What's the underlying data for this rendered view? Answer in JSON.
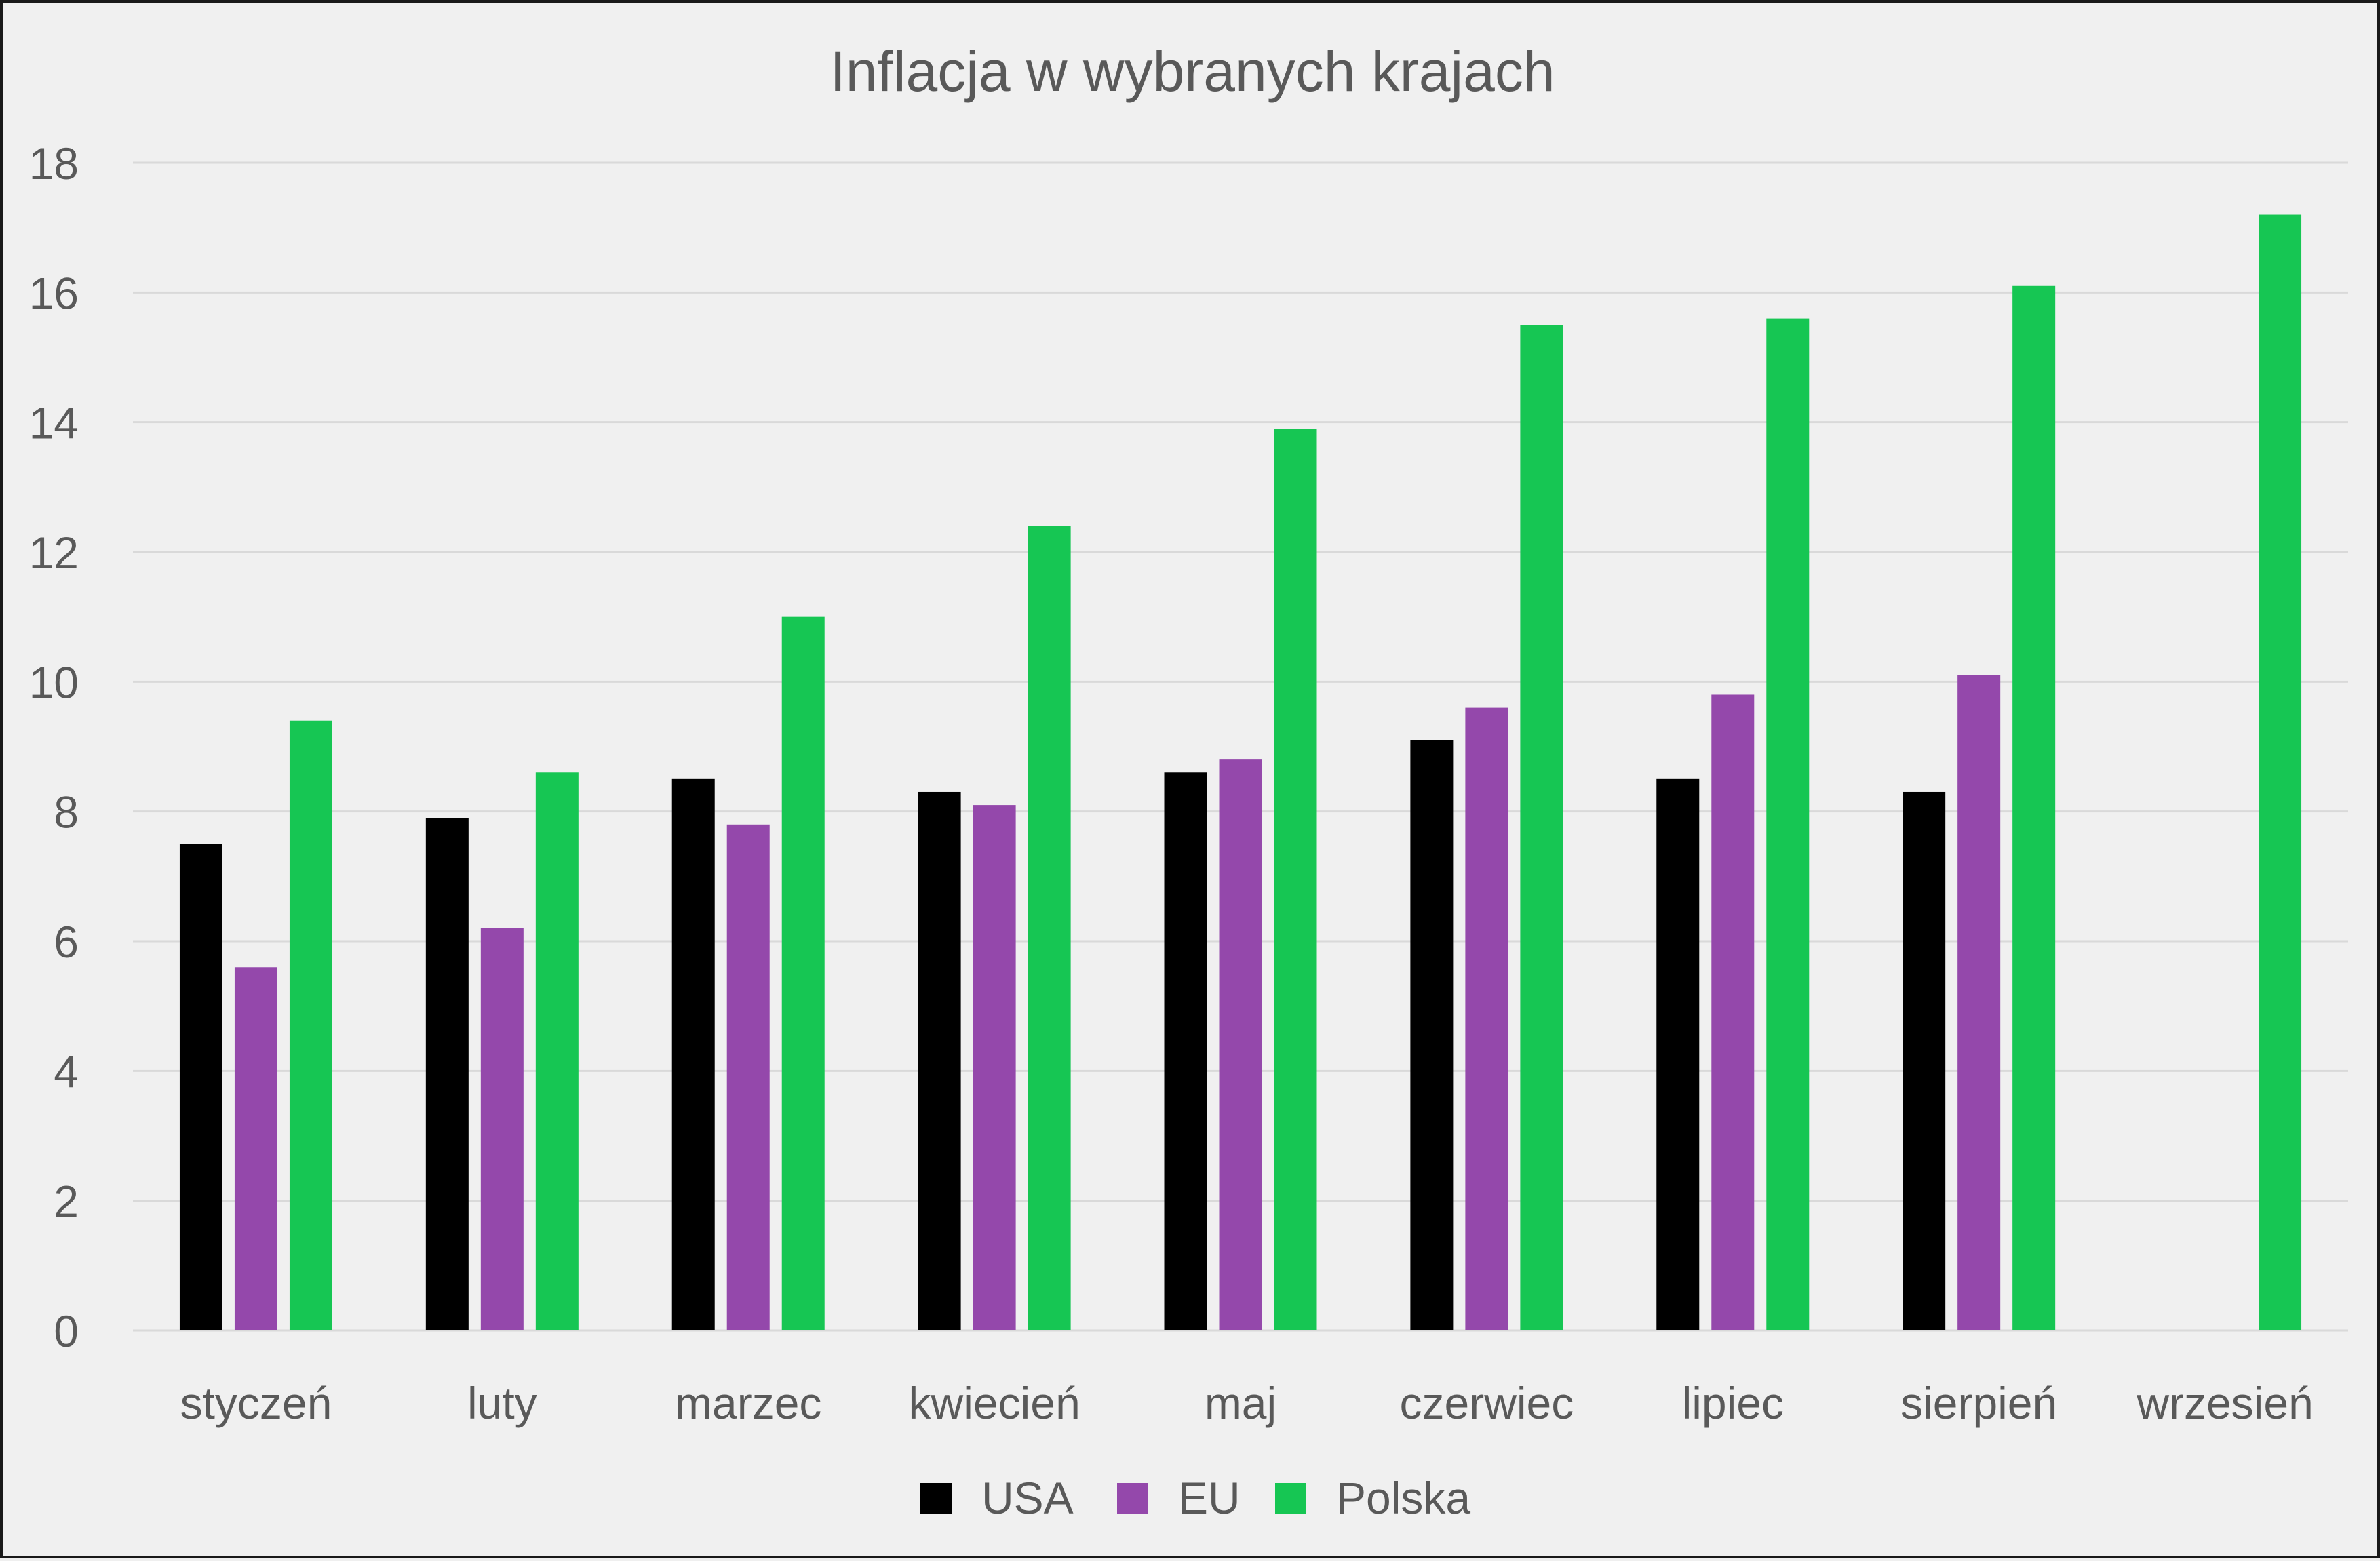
{
  "chart_data": {
    "type": "bar",
    "title": "Inflacja w wybranych krajach",
    "xlabel": "",
    "ylabel": "",
    "ylim": [
      0,
      18
    ],
    "yticks": [
      0,
      2,
      4,
      6,
      8,
      10,
      12,
      14,
      16,
      18
    ],
    "grid": true,
    "legend_position": "bottom",
    "categories": [
      "styczeń",
      "luty",
      "marzec",
      "kwiecień",
      "maj",
      "czerwiec",
      "lipiec",
      "sierpień",
      "wrzesień"
    ],
    "series": [
      {
        "name": "USA",
        "color": "#000000",
        "values": [
          7.5,
          7.9,
          8.5,
          8.3,
          8.6,
          9.1,
          8.5,
          8.3,
          null
        ]
      },
      {
        "name": "EU",
        "color": "#9448ab",
        "values": [
          5.6,
          6.2,
          7.8,
          8.1,
          8.8,
          9.6,
          9.8,
          10.1,
          null
        ]
      },
      {
        "name": "Polska",
        "color": "#16c653",
        "values": [
          9.4,
          8.6,
          11.0,
          12.4,
          13.9,
          15.5,
          15.6,
          16.1,
          17.2
        ]
      }
    ]
  }
}
